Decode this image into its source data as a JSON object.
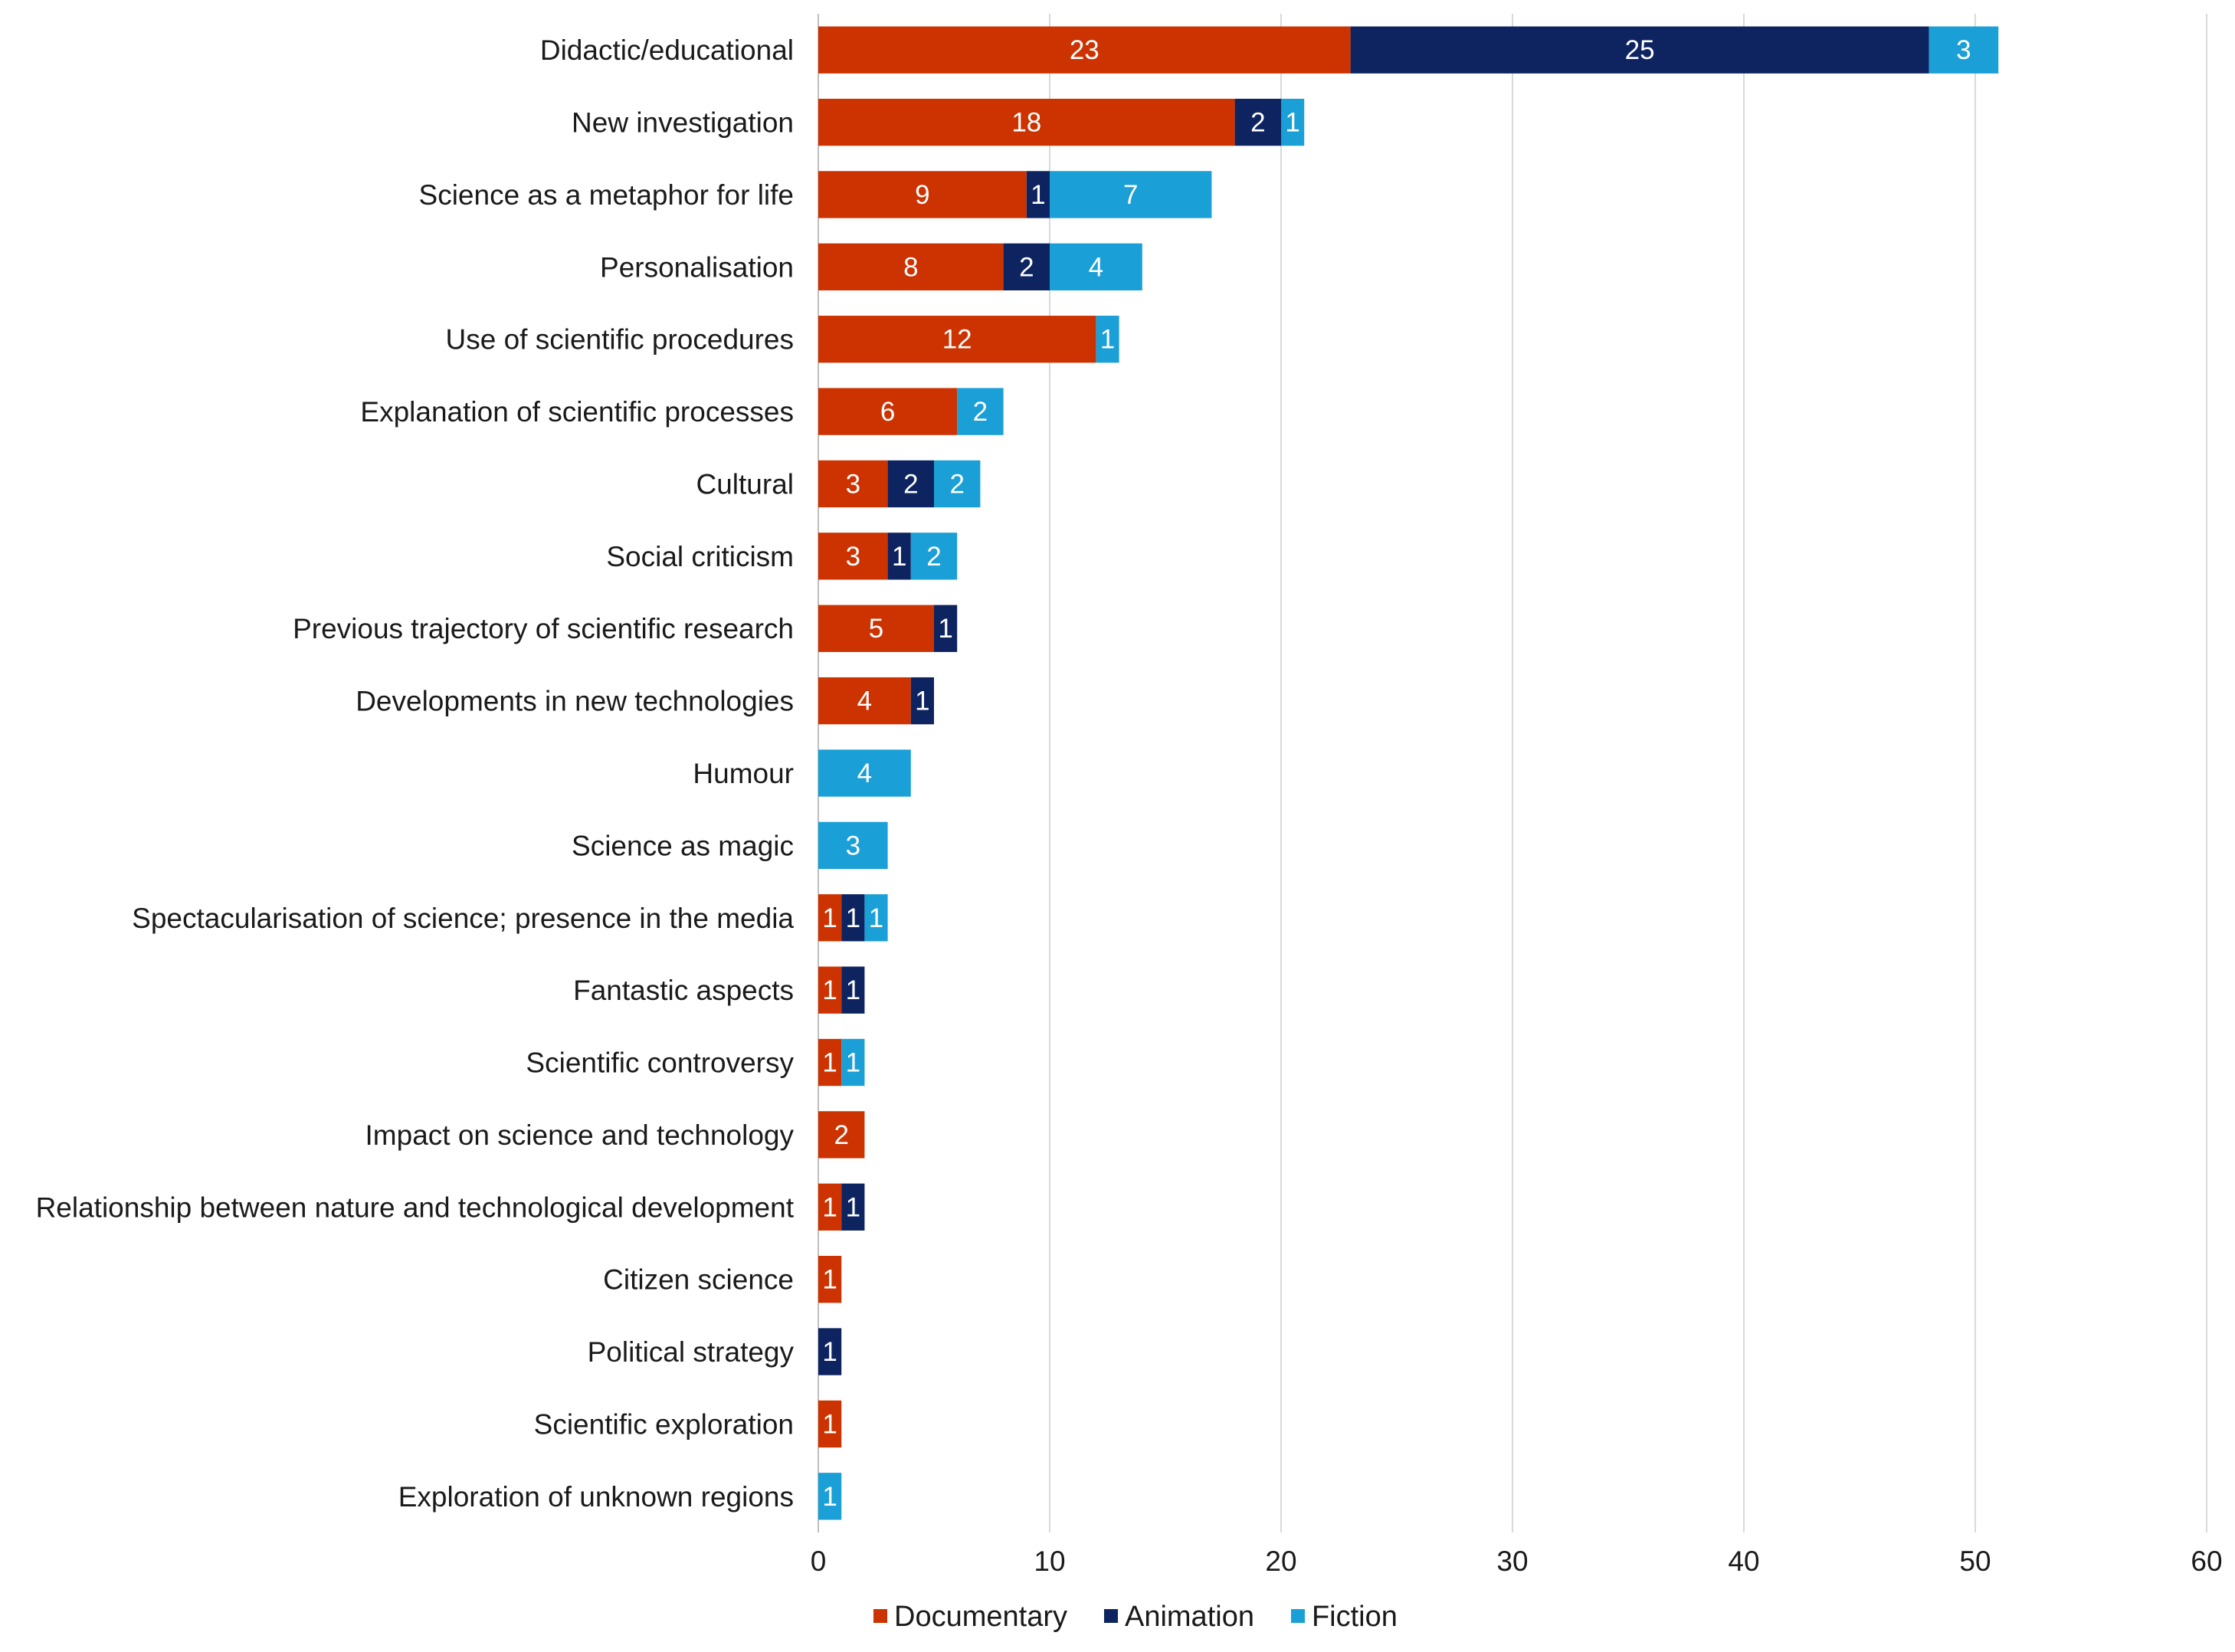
{
  "chart_data": {
    "type": "bar",
    "orientation": "horizontal",
    "stacked": true,
    "title": "",
    "xlabel": "",
    "ylabel": "",
    "xlim": [
      0,
      60
    ],
    "xticks": [
      0,
      10,
      20,
      30,
      40,
      50,
      60
    ],
    "grid": true,
    "legend_position": "bottom",
    "categories": [
      "Didactic/educational",
      "New investigation",
      "Science as a metaphor for life",
      "Personalisation",
      "Use of scientific procedures",
      "Explanation of scientific processes",
      "Cultural",
      "Social criticism",
      "Previous trajectory of scientific research",
      "Developments in new technologies",
      "Humour",
      "Science as magic",
      "Spectacularisation of science; presence in the media",
      "Fantastic aspects",
      "Scientific controversy",
      "Impact on science and technology",
      "Relationship between nature and technological development",
      "Citizen science",
      "Political strategy",
      "Scientific exploration",
      "Exploration of unknown regions"
    ],
    "series": [
      {
        "name": "Documentary",
        "color": "#cc3300",
        "values": [
          23,
          18,
          9,
          8,
          12,
          6,
          3,
          3,
          5,
          4,
          0,
          0,
          1,
          1,
          1,
          2,
          1,
          1,
          0,
          1,
          0
        ]
      },
      {
        "name": "Animation",
        "color": "#0d2460",
        "values": [
          25,
          2,
          1,
          2,
          0,
          0,
          2,
          1,
          1,
          1,
          0,
          0,
          1,
          1,
          0,
          0,
          1,
          0,
          1,
          0,
          0
        ]
      },
      {
        "name": "Fiction",
        "color": "#1a9fd6",
        "values": [
          3,
          1,
          7,
          4,
          1,
          2,
          2,
          2,
          0,
          0,
          4,
          3,
          1,
          0,
          1,
          0,
          0,
          0,
          0,
          0,
          1
        ]
      }
    ]
  }
}
